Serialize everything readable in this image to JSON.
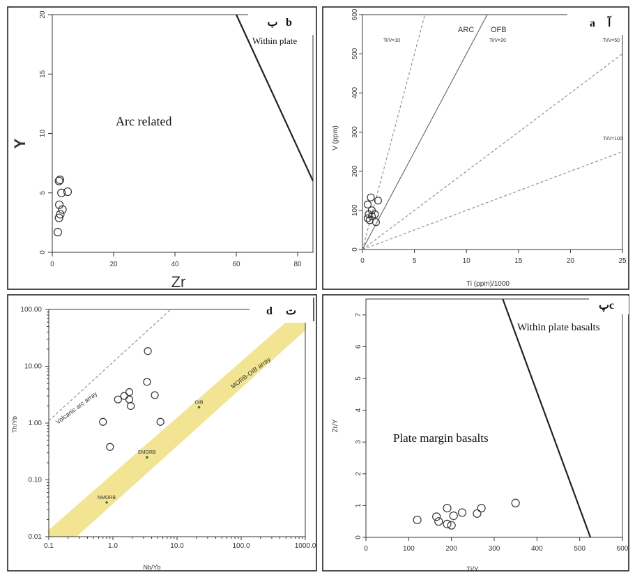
{
  "panels": {
    "b": {
      "letter": "b",
      "persian": "ب"
    },
    "a": {
      "letter": "a",
      "persian": "آ"
    },
    "d": {
      "letter": "d",
      "persian": "ت"
    },
    "c": {
      "letter": "c",
      "persian": "پ"
    }
  },
  "chart_data": [
    {
      "id": "b",
      "type": "scatter",
      "xlabel": "Zr",
      "ylabel": "Y",
      "xlim": [
        0,
        85
      ],
      "ylim": [
        0,
        20
      ],
      "xticks": [
        "0",
        "20",
        "40",
        "60",
        "80"
      ],
      "yticks": [
        "0",
        "5",
        "10",
        "15",
        "20"
      ],
      "fields": [
        {
          "label": "Arc related"
        },
        {
          "label": "Within plate"
        }
      ],
      "boundary": [
        [
          60,
          20
        ],
        [
          85,
          6
        ]
      ],
      "points": [
        [
          2.5,
          6.1
        ],
        [
          2.2,
          6.0
        ],
        [
          3,
          5.0
        ],
        [
          5,
          5.1
        ],
        [
          2.3,
          4.0
        ],
        [
          3.3,
          3.6
        ],
        [
          2.6,
          3.2
        ],
        [
          2.2,
          2.9
        ],
        [
          1.8,
          1.7
        ]
      ]
    },
    {
      "id": "a",
      "type": "scatter",
      "xlabel": "Ti (ppm)/1000",
      "ylabel": "V (ppm)",
      "xlim": [
        0,
        25
      ],
      "ylim": [
        0,
        600
      ],
      "xticks": [
        "0",
        "5",
        "10",
        "15",
        "20",
        "25"
      ],
      "yticks": [
        "0",
        "100",
        "200",
        "300",
        "400",
        "500",
        "600"
      ],
      "fields": [
        {
          "label": "ARC"
        },
        {
          "label": "OFB"
        }
      ],
      "ratio_lines": [
        {
          "label": "Ti/V=10",
          "ratio": 10,
          "style": "dashed"
        },
        {
          "label": "Ti/V=20",
          "ratio": 20,
          "style": "solid"
        },
        {
          "label": "Ti/V=50",
          "ratio": 50,
          "style": "dashed"
        },
        {
          "label": "Ti/V=100",
          "ratio": 100,
          "style": "dashed"
        }
      ],
      "points": [
        [
          0.8,
          133
        ],
        [
          0.5,
          115
        ],
        [
          1.5,
          125
        ],
        [
          0.9,
          100
        ],
        [
          0.6,
          90
        ],
        [
          0.5,
          80
        ],
        [
          0.9,
          85
        ],
        [
          1.2,
          90
        ],
        [
          0.7,
          75
        ],
        [
          1.3,
          70
        ]
      ]
    },
    {
      "id": "d",
      "type": "scatter",
      "xlabel": "Nb/Yb",
      "ylabel": "Th/Yb",
      "xscale": "log",
      "yscale": "log",
      "xlim": [
        0.1,
        1000
      ],
      "ylim": [
        0.01,
        100
      ],
      "xticks": [
        "0.1",
        "1.0",
        "10.0",
        "100.0",
        "1000.0"
      ],
      "yticks": [
        "0.01",
        "0.10",
        "1.00",
        "10.00",
        "100.00"
      ],
      "array_labels": [
        {
          "label": "MORB-OIB array"
        },
        {
          "label": "Volcanic arc array"
        }
      ],
      "references": [
        {
          "label": "NMORB",
          "x": 0.8,
          "y": 0.04
        },
        {
          "label": "EMORB",
          "x": 3.4,
          "y": 0.25
        },
        {
          "label": "OIB",
          "x": 22,
          "y": 1.9
        }
      ],
      "points": [
        [
          3.5,
          18.5
        ],
        [
          3.4,
          5.3
        ],
        [
          1.2,
          2.6
        ],
        [
          1.5,
          3.0
        ],
        [
          1.8,
          3.5
        ],
        [
          1.8,
          2.6
        ],
        [
          1.9,
          2.0
        ],
        [
          4.5,
          3.1
        ],
        [
          0.7,
          1.05
        ],
        [
          5.5,
          1.05
        ],
        [
          0.9,
          0.38
        ]
      ]
    },
    {
      "id": "c",
      "type": "scatter",
      "xlabel": "Ti/Y",
      "ylabel": "Zr/Y",
      "xlim": [
        0,
        600
      ],
      "ylim": [
        0,
        7.5
      ],
      "xticks": [
        "0",
        "100",
        "200",
        "300",
        "400",
        "500",
        "600"
      ],
      "yticks": [
        "0",
        "1",
        "2",
        "3",
        "4",
        "5",
        "6",
        "7"
      ],
      "fields": [
        {
          "label": "Plate margin basalts"
        },
        {
          "label": "Within plate basalts"
        }
      ],
      "boundary": [
        [
          320,
          7.5
        ],
        [
          525,
          0
        ]
      ],
      "points": [
        [
          120,
          0.55
        ],
        [
          165,
          0.65
        ],
        [
          170,
          0.5
        ],
        [
          190,
          0.92
        ],
        [
          190,
          0.42
        ],
        [
          200,
          0.38
        ],
        [
          205,
          0.68
        ],
        [
          225,
          0.78
        ],
        [
          260,
          0.75
        ],
        [
          270,
          0.92
        ],
        [
          350,
          1.08
        ]
      ]
    }
  ]
}
